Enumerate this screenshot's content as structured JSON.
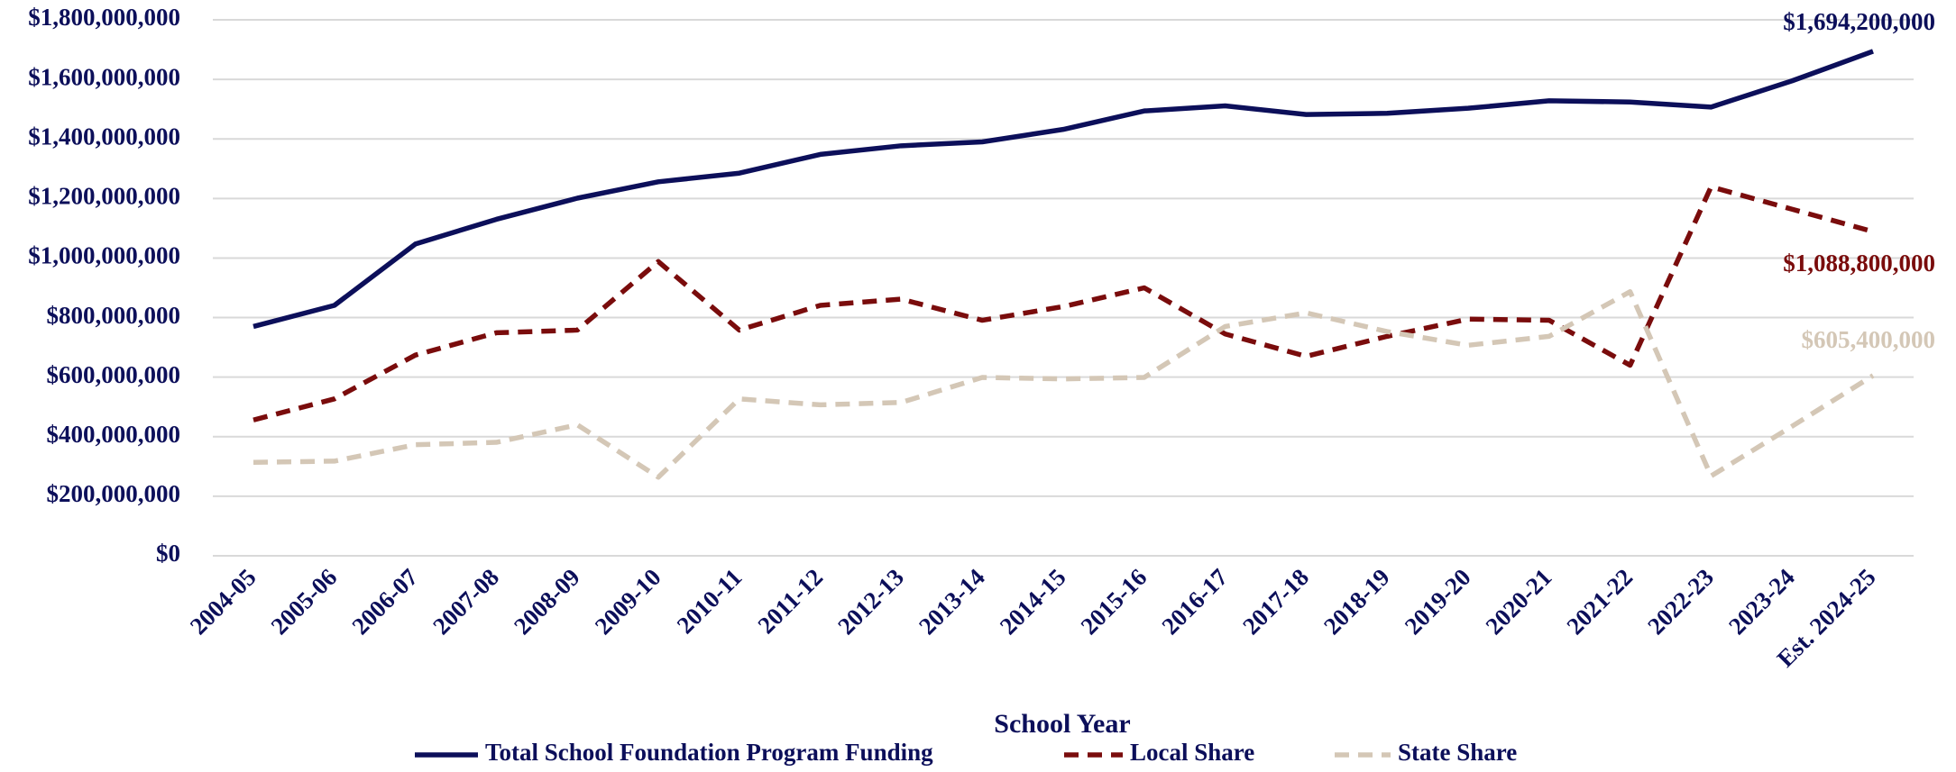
{
  "chart_data": {
    "type": "line",
    "x_label": "School Year",
    "categories": [
      "2004-05",
      "2005-06",
      "2006-07",
      "2007-08",
      "2008-09",
      "2009-10",
      "2010-11",
      "2011-12",
      "2012-13",
      "2013-14",
      "2014-15",
      "2015-16",
      "2016-17",
      "2017-18",
      "2018-19",
      "2019-20",
      "2020-21",
      "2021-22",
      "2022-23",
      "2023-24",
      "Est. 2024-25"
    ],
    "series": [
      {
        "name": "Total School Foundation Program Funding",
        "color": "#0c0f5a",
        "dash": false,
        "values": [
          770000000,
          841000000,
          1047000000,
          1130000000,
          1201000000,
          1256000000,
          1285000000,
          1348000000,
          1377000000,
          1390000000,
          1432000000,
          1494000000,
          1511000000,
          1482000000,
          1486000000,
          1503000000,
          1528000000,
          1524000000,
          1507000000,
          1595000000,
          1694200000
        ],
        "value_labels": [
          null,
          null,
          null,
          null,
          null,
          null,
          null,
          null,
          null,
          null,
          null,
          null,
          null,
          null,
          null,
          null,
          null,
          null,
          null,
          null,
          "$1,694,200,000"
        ]
      },
      {
        "name": "Local Share",
        "color": "#7a0c0c",
        "dash": true,
        "values": [
          456000000,
          527000000,
          674000000,
          749000000,
          758000000,
          988000000,
          758000000,
          841000000,
          862000000,
          791000000,
          837000000,
          900000000,
          745000000,
          670000000,
          737000000,
          795000000,
          791000000,
          640000000,
          1239000000,
          1164000000,
          1088800000
        ],
        "value_labels": [
          null,
          null,
          null,
          null,
          null,
          null,
          null,
          null,
          null,
          null,
          null,
          null,
          null,
          null,
          null,
          null,
          null,
          null,
          null,
          null,
          "$1,088,800,000"
        ]
      },
      {
        "name": "State Share",
        "color": "#d4c7b6",
        "dash": true,
        "values": [
          314000000,
          318000000,
          373000000,
          381000000,
          440000000,
          264000000,
          527000000,
          507000000,
          515000000,
          599000000,
          594000000,
          599000000,
          770000000,
          816000000,
          753000000,
          707000000,
          737000000,
          887000000,
          268000000,
          435000000,
          605400000
        ],
        "value_labels": [
          null,
          null,
          null,
          null,
          null,
          null,
          null,
          null,
          null,
          null,
          null,
          null,
          null,
          null,
          null,
          null,
          null,
          null,
          null,
          null,
          "$605,400,000"
        ]
      }
    ],
    "ylim": [
      0,
      1800000000
    ],
    "yticks": [
      {
        "value": 0,
        "label": "$0"
      },
      {
        "value": 200000000,
        "label": "$200,000,000"
      },
      {
        "value": 400000000,
        "label": "$400,000,000"
      },
      {
        "value": 600000000,
        "label": "$600,000,000"
      },
      {
        "value": 800000000,
        "label": "$800,000,000"
      },
      {
        "value": 1000000000,
        "label": "$1,000,000,000"
      },
      {
        "value": 1200000000,
        "label": "$1,200,000,000"
      },
      {
        "value": 1400000000,
        "label": "$1,400,000,000"
      },
      {
        "value": 1600000000,
        "label": "$1,600,000,000"
      },
      {
        "value": 1800000000,
        "label": "$1,800,000,000"
      }
    ],
    "grid": true,
    "legend": "bottom"
  }
}
